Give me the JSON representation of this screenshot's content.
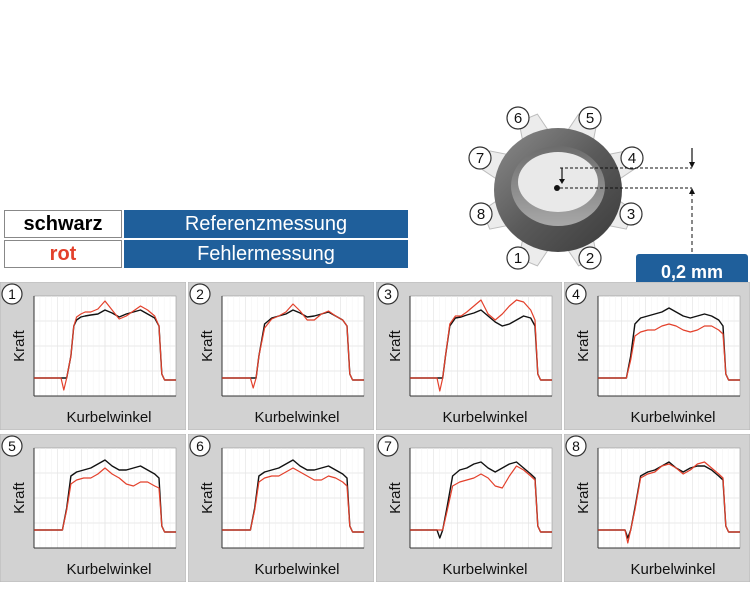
{
  "legend": {
    "rows": [
      {
        "key": "schwarz",
        "key_color": "#000000",
        "value": "Referenzmessung"
      },
      {
        "key": "rot",
        "key_color": "#e3402b",
        "value": "Fehlermessung"
      }
    ]
  },
  "gear": {
    "labels": [
      "1",
      "2",
      "3",
      "4",
      "5",
      "6",
      "7",
      "8"
    ]
  },
  "offset": {
    "label": "0,2 mm"
  },
  "colors": {
    "reference": "#111111",
    "error": "#e3402b",
    "accent": "#1f5f9b",
    "panel_bg": "#d2d2d2"
  },
  "chart_data": [
    {
      "type": "line",
      "panel_label": "1",
      "xlabel": "Kurbelwinkel",
      "ylabel": "Kraft",
      "x": [
        0.0,
        0.19,
        0.21,
        0.23,
        0.26,
        0.28,
        0.3,
        0.33,
        0.36,
        0.4,
        0.45,
        0.5,
        0.55,
        0.6,
        0.65,
        0.7,
        0.75,
        0.8,
        0.85,
        0.88,
        0.9,
        0.92,
        1.0
      ],
      "series": [
        {
          "name": "Referenzmessung",
          "values": [
            0.18,
            0.18,
            0.18,
            0.18,
            0.4,
            0.7,
            0.76,
            0.79,
            0.8,
            0.81,
            0.82,
            0.86,
            0.83,
            0.79,
            0.82,
            0.84,
            0.86,
            0.82,
            0.78,
            0.7,
            0.22,
            0.16,
            0.16
          ]
        },
        {
          "name": "Fehlermessung",
          "values": [
            0.18,
            0.18,
            0.06,
            0.18,
            0.4,
            0.7,
            0.79,
            0.82,
            0.84,
            0.84,
            0.87,
            0.95,
            0.86,
            0.77,
            0.8,
            0.85,
            0.9,
            0.86,
            0.8,
            0.7,
            0.22,
            0.16,
            0.16
          ]
        }
      ]
    },
    {
      "type": "line",
      "panel_label": "2",
      "xlabel": "Kurbelwinkel",
      "ylabel": "Kraft",
      "x": [
        0.0,
        0.2,
        0.22,
        0.24,
        0.26,
        0.3,
        0.35,
        0.4,
        0.45,
        0.5,
        0.55,
        0.6,
        0.65,
        0.7,
        0.75,
        0.8,
        0.85,
        0.88,
        0.9,
        0.92,
        1.0
      ],
      "series": [
        {
          "name": "Referenzmessung",
          "values": [
            0.18,
            0.18,
            0.18,
            0.18,
            0.4,
            0.72,
            0.78,
            0.8,
            0.82,
            0.86,
            0.83,
            0.79,
            0.8,
            0.82,
            0.84,
            0.8,
            0.76,
            0.7,
            0.22,
            0.16,
            0.16
          ]
        },
        {
          "name": "Fehlermessung",
          "values": [
            0.18,
            0.18,
            0.08,
            0.18,
            0.4,
            0.68,
            0.77,
            0.8,
            0.84,
            0.92,
            0.85,
            0.76,
            0.76,
            0.82,
            0.85,
            0.8,
            0.76,
            0.7,
            0.22,
            0.16,
            0.16
          ]
        }
      ]
    },
    {
      "type": "line",
      "panel_label": "3",
      "xlabel": "Kurbelwinkel",
      "ylabel": "Kraft",
      "x": [
        0.0,
        0.19,
        0.21,
        0.23,
        0.25,
        0.28,
        0.32,
        0.36,
        0.4,
        0.45,
        0.5,
        0.55,
        0.6,
        0.65,
        0.7,
        0.75,
        0.8,
        0.85,
        0.88,
        0.9,
        0.92,
        1.0
      ],
      "series": [
        {
          "name": "Referenzmessung",
          "values": [
            0.18,
            0.18,
            0.18,
            0.18,
            0.4,
            0.7,
            0.78,
            0.79,
            0.81,
            0.83,
            0.86,
            0.8,
            0.74,
            0.7,
            0.72,
            0.76,
            0.8,
            0.78,
            0.7,
            0.22,
            0.16,
            0.16
          ]
        },
        {
          "name": "Fehlermessung",
          "values": [
            0.18,
            0.18,
            0.05,
            0.18,
            0.4,
            0.72,
            0.8,
            0.8,
            0.84,
            0.9,
            0.96,
            0.82,
            0.76,
            0.82,
            0.9,
            0.96,
            0.94,
            0.86,
            0.76,
            0.22,
            0.16,
            0.16
          ]
        }
      ]
    },
    {
      "type": "line",
      "panel_label": "4",
      "xlabel": "Kurbelwinkel",
      "ylabel": "Kraft",
      "x": [
        0.0,
        0.2,
        0.23,
        0.26,
        0.3,
        0.35,
        0.4,
        0.45,
        0.5,
        0.55,
        0.6,
        0.65,
        0.7,
        0.75,
        0.8,
        0.85,
        0.88,
        0.9,
        0.92,
        1.0
      ],
      "series": [
        {
          "name": "Referenzmessung",
          "values": [
            0.18,
            0.18,
            0.4,
            0.72,
            0.78,
            0.8,
            0.82,
            0.84,
            0.88,
            0.84,
            0.8,
            0.78,
            0.8,
            0.82,
            0.8,
            0.76,
            0.7,
            0.22,
            0.16,
            0.16
          ]
        },
        {
          "name": "Fehlermessung",
          "values": [
            0.18,
            0.18,
            0.36,
            0.6,
            0.64,
            0.66,
            0.66,
            0.7,
            0.72,
            0.7,
            0.66,
            0.64,
            0.66,
            0.7,
            0.7,
            0.66,
            0.62,
            0.22,
            0.16,
            0.16
          ]
        }
      ]
    },
    {
      "type": "line",
      "panel_label": "5",
      "xlabel": "Kurbelwinkel",
      "ylabel": "Kraft",
      "x": [
        0.0,
        0.2,
        0.23,
        0.26,
        0.3,
        0.35,
        0.4,
        0.45,
        0.5,
        0.55,
        0.6,
        0.65,
        0.7,
        0.75,
        0.8,
        0.85,
        0.88,
        0.9,
        0.92,
        1.0
      ],
      "series": [
        {
          "name": "Referenzmessung",
          "values": [
            0.18,
            0.18,
            0.4,
            0.72,
            0.76,
            0.78,
            0.8,
            0.84,
            0.88,
            0.82,
            0.78,
            0.78,
            0.8,
            0.82,
            0.78,
            0.74,
            0.7,
            0.22,
            0.16,
            0.16
          ]
        },
        {
          "name": "Fehlermessung",
          "values": [
            0.18,
            0.18,
            0.38,
            0.64,
            0.68,
            0.7,
            0.7,
            0.74,
            0.8,
            0.74,
            0.7,
            0.64,
            0.62,
            0.66,
            0.66,
            0.62,
            0.6,
            0.22,
            0.16,
            0.16
          ]
        }
      ]
    },
    {
      "type": "line",
      "panel_label": "6",
      "xlabel": "Kurbelwinkel",
      "ylabel": "Kraft",
      "x": [
        0.0,
        0.2,
        0.23,
        0.26,
        0.3,
        0.35,
        0.4,
        0.45,
        0.5,
        0.55,
        0.6,
        0.65,
        0.7,
        0.75,
        0.8,
        0.85,
        0.88,
        0.9,
        0.92,
        1.0
      ],
      "series": [
        {
          "name": "Referenzmessung",
          "values": [
            0.18,
            0.18,
            0.4,
            0.72,
            0.76,
            0.78,
            0.8,
            0.84,
            0.88,
            0.82,
            0.78,
            0.78,
            0.8,
            0.82,
            0.78,
            0.74,
            0.7,
            0.22,
            0.16,
            0.16
          ]
        },
        {
          "name": "Fehlermessung",
          "values": [
            0.18,
            0.18,
            0.38,
            0.66,
            0.7,
            0.72,
            0.72,
            0.76,
            0.8,
            0.76,
            0.72,
            0.68,
            0.68,
            0.72,
            0.7,
            0.66,
            0.62,
            0.22,
            0.16,
            0.16
          ]
        }
      ]
    },
    {
      "type": "line",
      "panel_label": "7",
      "xlabel": "Kurbelwinkel",
      "ylabel": "Kraft",
      "x": [
        0.0,
        0.19,
        0.21,
        0.23,
        0.26,
        0.3,
        0.35,
        0.4,
        0.45,
        0.5,
        0.55,
        0.6,
        0.65,
        0.7,
        0.75,
        0.8,
        0.85,
        0.88,
        0.9,
        0.92,
        1.0
      ],
      "series": [
        {
          "name": "Referenzmessung",
          "values": [
            0.18,
            0.18,
            0.1,
            0.18,
            0.4,
            0.72,
            0.78,
            0.8,
            0.84,
            0.86,
            0.8,
            0.76,
            0.8,
            0.84,
            0.86,
            0.8,
            0.74,
            0.7,
            0.22,
            0.16,
            0.16
          ]
        },
        {
          "name": "Fehlermessung",
          "values": [
            0.18,
            0.18,
            0.18,
            0.18,
            0.36,
            0.62,
            0.66,
            0.68,
            0.7,
            0.74,
            0.7,
            0.62,
            0.6,
            0.72,
            0.82,
            0.78,
            0.72,
            0.68,
            0.22,
            0.16,
            0.16
          ]
        }
      ]
    },
    {
      "type": "line",
      "panel_label": "8",
      "xlabel": "Kurbelwinkel",
      "ylabel": "Kraft",
      "x": [
        0.0,
        0.19,
        0.21,
        0.23,
        0.26,
        0.3,
        0.35,
        0.4,
        0.45,
        0.5,
        0.55,
        0.6,
        0.65,
        0.7,
        0.75,
        0.8,
        0.85,
        0.88,
        0.9,
        0.92,
        1.0
      ],
      "series": [
        {
          "name": "Referenzmessung",
          "values": [
            0.18,
            0.18,
            0.1,
            0.18,
            0.4,
            0.72,
            0.76,
            0.78,
            0.82,
            0.86,
            0.8,
            0.76,
            0.8,
            0.82,
            0.82,
            0.78,
            0.72,
            0.68,
            0.22,
            0.16,
            0.16
          ]
        },
        {
          "name": "Fehlermessung",
          "values": [
            0.18,
            0.18,
            0.05,
            0.18,
            0.38,
            0.7,
            0.74,
            0.76,
            0.82,
            0.84,
            0.8,
            0.74,
            0.78,
            0.84,
            0.86,
            0.8,
            0.74,
            0.7,
            0.22,
            0.16,
            0.16
          ]
        }
      ]
    }
  ]
}
